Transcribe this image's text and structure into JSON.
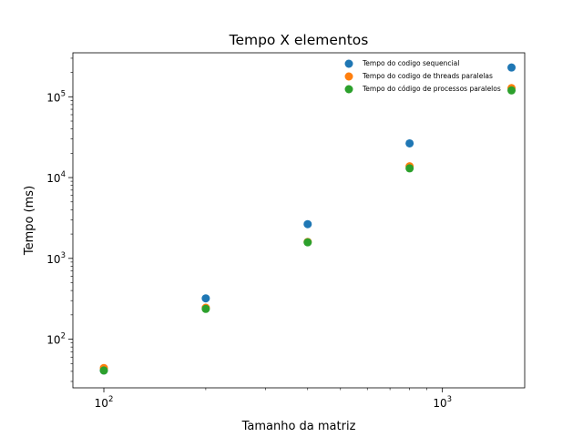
{
  "chart_data": {
    "type": "scatter",
    "title": "Tempo X elementos",
    "xlabel": "Tamanho da matriz",
    "ylabel": "Tempo (ms)",
    "xscale": "log",
    "yscale": "log",
    "xlim": [
      81,
      1750
    ],
    "ylim": [
      25,
      350000
    ],
    "grid": false,
    "legend": "top-right",
    "x_ticks": [
      {
        "value": 100,
        "base": "10",
        "exp": "2"
      },
      {
        "value": 1000,
        "base": "10",
        "exp": "3"
      }
    ],
    "y_ticks": [
      {
        "value": 100,
        "base": "10",
        "exp": "2"
      },
      {
        "value": 1000,
        "base": "10",
        "exp": "3"
      },
      {
        "value": 10000,
        "base": "10",
        "exp": "4"
      },
      {
        "value": 100000,
        "base": "10",
        "exp": "5"
      }
    ],
    "series": [
      {
        "name": "Tempo do codigo sequencial",
        "color": "#1f77b4",
        "x": [
          100,
          200,
          400,
          800,
          1600
        ],
        "y": [
          41,
          320,
          2650,
          26500,
          230000
        ]
      },
      {
        "name": "Tempo do codigo de threads paralelas",
        "color": "#ff7f0e",
        "x": [
          100,
          200,
          400,
          800,
          1600
        ],
        "y": [
          44,
          245,
          1600,
          13800,
          128000
        ]
      },
      {
        "name": "Tempo do código de processos paralelos",
        "color": "#2ca02c",
        "x": [
          100,
          200,
          400,
          800,
          1600
        ],
        "y": [
          41,
          237,
          1580,
          13000,
          120000
        ]
      }
    ]
  }
}
